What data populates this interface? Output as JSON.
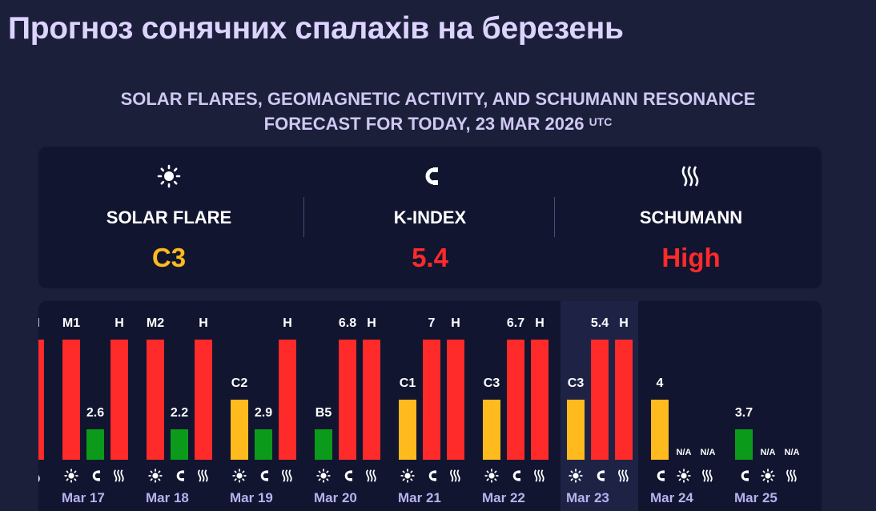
{
  "page_title": "Прогноз сонячних спалахів на березень",
  "subtitle_line1": "SOLAR FLARES, GEOMAGNETIC ACTIVITY, AND SCHUMANN RESONANCE",
  "subtitle_line2": "FORECAST FOR TODAY, 23 MAR 2026",
  "subtitle_tz": "UTC",
  "colors": {
    "red": "#ff2a2a",
    "yellow": "#ffbb1e",
    "green": "#0c9a1a"
  },
  "summary": [
    {
      "icon": "sun-icon",
      "label": "SOLAR FLARE",
      "value": "C3",
      "color": "#ffbb1e"
    },
    {
      "icon": "magnet-icon",
      "label": "K-INDEX",
      "value": "5.4",
      "color": "#ff2a2a"
    },
    {
      "icon": "waves-icon",
      "label": "SCHUMANN",
      "value": "High",
      "color": "#ff2a2a"
    }
  ],
  "days": [
    {
      "date": "Mar 17",
      "bars": [
        {
          "label": "M1",
          "level": 1,
          "color": "red",
          "icon": "sun-icon"
        },
        {
          "label": "2.6",
          "level": 0.25,
          "color": "green",
          "icon": "magnet-icon"
        },
        {
          "label": "H",
          "level": 1,
          "color": "red",
          "icon": "waves-icon"
        }
      ]
    },
    {
      "date": "Mar 18",
      "bars": [
        {
          "label": "M2",
          "level": 1,
          "color": "red",
          "icon": "sun-icon"
        },
        {
          "label": "2.2",
          "level": 0.25,
          "color": "green",
          "icon": "magnet-icon"
        },
        {
          "label": "H",
          "level": 1,
          "color": "red",
          "icon": "waves-icon"
        }
      ]
    },
    {
      "date": "Mar 19",
      "bars": [
        {
          "label": "C2",
          "level": 0.5,
          "color": "yellow",
          "icon": "sun-icon"
        },
        {
          "label": "2.9",
          "level": 0.25,
          "color": "green",
          "icon": "magnet-icon"
        },
        {
          "label": "H",
          "level": 1,
          "color": "red",
          "icon": "waves-icon"
        }
      ]
    },
    {
      "date": "Mar 20",
      "bars": [
        {
          "label": "B5",
          "level": 0.25,
          "color": "green",
          "icon": "sun-icon"
        },
        {
          "label": "6.8",
          "level": 1,
          "color": "red",
          "icon": "magnet-icon"
        },
        {
          "label": "H",
          "level": 1,
          "color": "red",
          "icon": "waves-icon"
        }
      ]
    },
    {
      "date": "Mar 21",
      "bars": [
        {
          "label": "C1",
          "level": 0.5,
          "color": "yellow",
          "icon": "sun-icon"
        },
        {
          "label": "7",
          "level": 1,
          "color": "red",
          "icon": "magnet-icon"
        },
        {
          "label": "H",
          "level": 1,
          "color": "red",
          "icon": "waves-icon"
        }
      ]
    },
    {
      "date": "Mar 22",
      "bars": [
        {
          "label": "C3",
          "level": 0.5,
          "color": "yellow",
          "icon": "sun-icon"
        },
        {
          "label": "6.7",
          "level": 1,
          "color": "red",
          "icon": "magnet-icon"
        },
        {
          "label": "H",
          "level": 1,
          "color": "red",
          "icon": "waves-icon"
        }
      ]
    },
    {
      "date": "Mar 23",
      "bars": [
        {
          "label": "C3",
          "level": 0.5,
          "color": "yellow",
          "icon": "sun-icon"
        },
        {
          "label": "5.4",
          "level": 1,
          "color": "red",
          "icon": "magnet-icon"
        },
        {
          "label": "H",
          "level": 1,
          "color": "red",
          "icon": "waves-icon"
        }
      ]
    },
    {
      "date": "Mar 24",
      "bars": [
        {
          "label": "4",
          "level": 0.5,
          "color": "yellow",
          "icon": "magnet-icon"
        },
        {
          "label": "N/A",
          "level": 0,
          "color": "",
          "icon": "sun-icon"
        },
        {
          "label": "N/A",
          "level": 0,
          "color": "",
          "icon": "waves-icon"
        }
      ]
    },
    {
      "date": "Mar 25",
      "bars": [
        {
          "label": "3.7",
          "level": 0.25,
          "color": "green",
          "icon": "magnet-icon"
        },
        {
          "label": "N/A",
          "level": 0,
          "color": "",
          "icon": "sun-icon"
        },
        {
          "label": "N/A",
          "level": 0,
          "color": "",
          "icon": "waves-icon"
        }
      ]
    }
  ],
  "partial_prev": {
    "label": "H",
    "level": 1,
    "color": "red",
    "icon": "waves-icon"
  }
}
